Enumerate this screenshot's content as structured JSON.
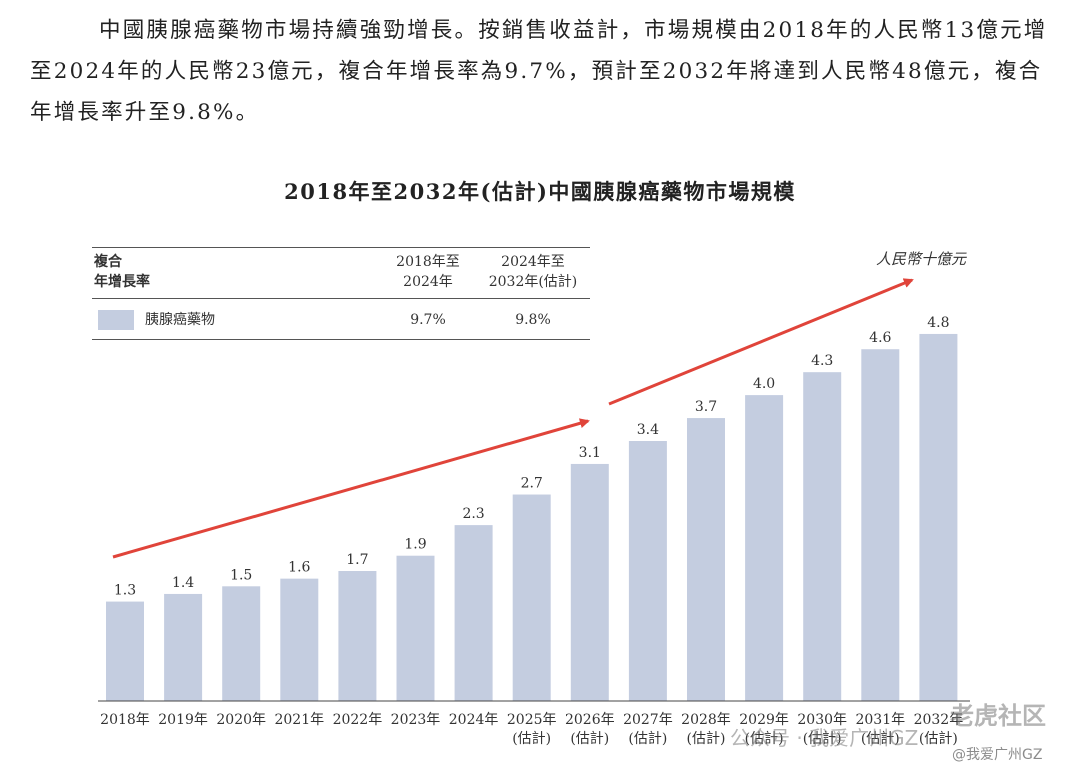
{
  "paragraph": "中國胰腺癌藥物市場持續強勁增長。按銷售收益計，市場規模由2018年的人民幣13億元增至2024年的人民幣23億元，複合年增長率為9.7%，預計至2032年將達到人民幣48億元，複合年增長率升至9.8%。",
  "legend_table": {
    "header_col1_line1": "複合",
    "header_col1_line2": "年增長率",
    "header_col2_line1": "2018年至",
    "header_col2_line2": "2024年",
    "header_col3_line1": "2024年至",
    "header_col3_line2": "2032年(估計)",
    "series_label": "胰腺癌藥物",
    "cagr_2018_2024": "9.7%",
    "cagr_2024_2032": "9.8%"
  },
  "watermarks": {
    "line1": "公众号 · 我爱广州GZ",
    "line2": "老虎社区",
    "line3": "@我爱广州GZ"
  },
  "chart_data": {
    "type": "bar",
    "title": "2018年至2032年(估計)中國胰腺癌藥物市場規模",
    "unit_label": "人民幣十億元",
    "categories": [
      [
        "2018年"
      ],
      [
        "2019年"
      ],
      [
        "2020年"
      ],
      [
        "2021年"
      ],
      [
        "2022年"
      ],
      [
        "2023年"
      ],
      [
        "2024年"
      ],
      [
        "2025年",
        "(估計)"
      ],
      [
        "2026年",
        "(估計)"
      ],
      [
        "2027年",
        "(估計)"
      ],
      [
        "2028年",
        "(估計)"
      ],
      [
        "2029年",
        "(估計)"
      ],
      [
        "2030年",
        "(估計)"
      ],
      [
        "2031年",
        "(估計)"
      ],
      [
        "2032年",
        "(估計)"
      ]
    ],
    "series": [
      {
        "name": "胰腺癌藥物",
        "values": [
          1.3,
          1.4,
          1.5,
          1.6,
          1.7,
          1.9,
          2.3,
          2.7,
          3.1,
          3.4,
          3.7,
          4.0,
          4.3,
          4.6,
          4.8
        ],
        "labels": [
          "1.3",
          "1.4",
          "1.5",
          "1.6",
          "1.7",
          "1.9",
          "2.3",
          "2.7",
          "3.1",
          "3.4",
          "3.7",
          "4.0",
          "4.3",
          "4.6",
          "4.8"
        ],
        "color": "#c4cde0"
      }
    ],
    "ylim": [
      0,
      5.1
    ],
    "arrow_color": "#e0443a",
    "grid": false
  }
}
